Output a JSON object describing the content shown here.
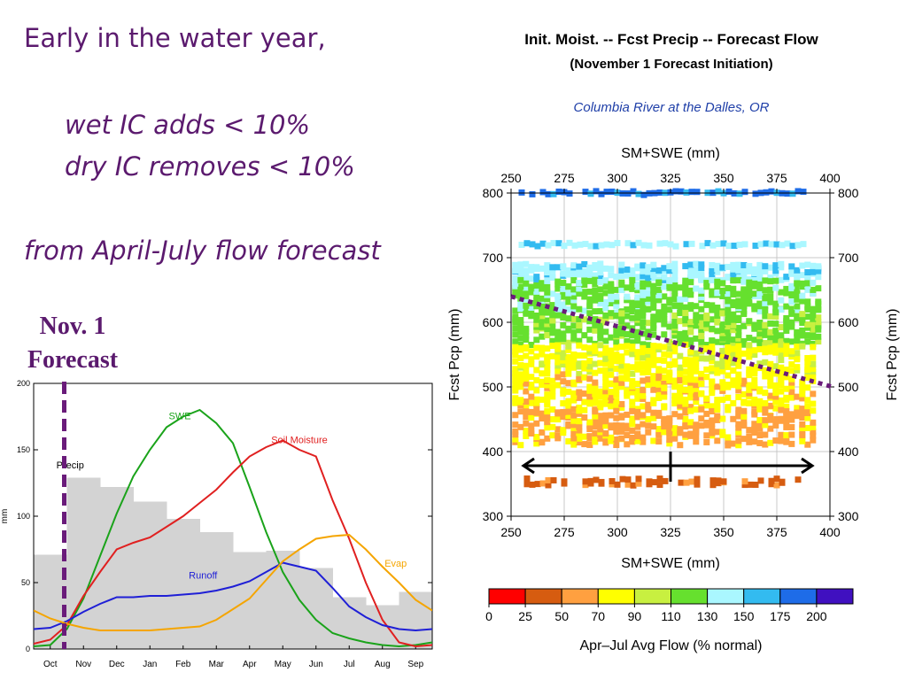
{
  "slide": {
    "line1": "Early in the water year,",
    "line2": "wet IC adds < 10%",
    "line3": "dry IC removes < 10%",
    "line4": "from April-July flow forecast",
    "nov_label_1": "Nov. 1",
    "nov_label_2": "Forecast"
  },
  "colors": {
    "slide_text": "#5b1a6e",
    "dashed_marker": "#6a1b7a",
    "subtitle_blue": "#1f3fa8"
  },
  "chart_data": [
    {
      "type": "line",
      "title": "",
      "xlabel": "",
      "ylabel": "mm",
      "ylim": [
        0,
        200
      ],
      "yticks": [
        0,
        50,
        100,
        150,
        200
      ],
      "categories": [
        "Oct",
        "Nov",
        "Dec",
        "Jan",
        "Feb",
        "Mar",
        "Apr",
        "May",
        "Jun",
        "Jul",
        "Aug",
        "Sep"
      ],
      "bars": {
        "name": "Precip",
        "color": "#d3d3d3",
        "values": [
          71,
          129,
          122,
          111,
          98,
          88,
          73,
          74,
          61,
          39,
          33,
          43
        ]
      },
      "series": [
        {
          "name": "SWE",
          "color": "#1aa31a",
          "label_anchor": [
            3.9,
            173
          ],
          "x": [
            -0.5,
            0,
            0.5,
            1,
            1.5,
            2,
            2.5,
            3,
            3.5,
            4,
            4.5,
            5,
            5.5,
            6,
            6.5,
            7,
            7.5,
            8,
            8.5,
            9,
            9.5,
            10,
            10.5,
            11,
            11.5
          ],
          "y": [
            2,
            3,
            15,
            38,
            70,
            102,
            130,
            150,
            167,
            175,
            180,
            170,
            155,
            122,
            88,
            58,
            37,
            22,
            12,
            8,
            5,
            3,
            2,
            3,
            5
          ]
        },
        {
          "name": "Soil Moisture",
          "color": "#e02020",
          "label_anchor": [
            7.5,
            155
          ],
          "x": [
            -0.5,
            0,
            0.5,
            1,
            1.5,
            2,
            2.5,
            3,
            3.5,
            4,
            4.5,
            5,
            5.5,
            6,
            6.5,
            7,
            7.5,
            8,
            8.5,
            9,
            9.5,
            10,
            10.5,
            11,
            11.5
          ],
          "y": [
            4,
            7,
            18,
            40,
            58,
            75,
            80,
            84,
            92,
            100,
            110,
            120,
            133,
            145,
            152,
            157,
            150,
            145,
            112,
            83,
            50,
            22,
            5,
            2,
            3
          ]
        },
        {
          "name": "Runoff",
          "color": "#1f1fd6",
          "label_anchor": [
            4.6,
            53
          ],
          "x": [
            -0.5,
            0,
            0.5,
            1,
            1.5,
            2,
            2.5,
            3,
            3.5,
            4,
            4.5,
            5,
            5.5,
            6,
            6.5,
            7,
            7.5,
            8,
            8.5,
            9,
            9.5,
            10,
            10.5,
            11,
            11.5
          ],
          "y": [
            15,
            16,
            21,
            28,
            34,
            39,
            39,
            40,
            40,
            41,
            42,
            44,
            47,
            51,
            58,
            65,
            62,
            59,
            46,
            32,
            24,
            18,
            15,
            14,
            15
          ]
        },
        {
          "name": "Evap",
          "color": "#f5a500",
          "label_anchor": [
            10.4,
            62
          ],
          "x": [
            -0.5,
            0,
            0.5,
            1,
            1.5,
            2,
            2.5,
            3,
            3.5,
            4,
            4.5,
            5,
            5.5,
            6,
            6.5,
            7,
            7.5,
            8,
            8.5,
            9,
            9.5,
            10,
            10.5,
            11,
            11.5
          ],
          "y": [
            29,
            23,
            19,
            16,
            14,
            14,
            14,
            14,
            15,
            16,
            17,
            22,
            30,
            38,
            52,
            66,
            75,
            83,
            85,
            86,
            75,
            62,
            50,
            37,
            29
          ]
        }
      ],
      "annotation": {
        "text": "Precip",
        "at": [
          0.6,
          136
        ]
      },
      "marker_x": "Nov. 1"
    },
    {
      "type": "scatter",
      "title": "Init. Moist. -- Fcst Precip -- Forecast Flow",
      "subtitle": "(November 1 Forecast Initiation)",
      "subtitle2": "Columbia River at the Dalles, OR",
      "xlabel": "SM+SWE (mm)",
      "ylabel": "Fcst Pcp (mm)",
      "xlim": [
        250,
        400
      ],
      "ylim": [
        300,
        800
      ],
      "xticks": [
        250,
        275,
        300,
        325,
        350,
        375,
        400
      ],
      "yticks": [
        300,
        400,
        500,
        600,
        700,
        800
      ],
      "colorbar": {
        "label": "Apr–Jul Avg Flow (% normal)",
        "boundaries": [
          "0",
          "25",
          "50",
          "70",
          "90",
          "110",
          "130",
          "150",
          "175",
          "200"
        ],
        "colors": [
          "#ff0000",
          "#d65c10",
          "#ffa040",
          "#ffff00",
          "#c8f040",
          "#66e02e",
          "#aaf7ff",
          "#33bbf0",
          "#1e6ce8",
          "#4010c0"
        ]
      },
      "bands": [
        {
          "pcp": [
            798,
            802
          ],
          "x": [
            255,
            388
          ],
          "density": 0.85,
          "color_index": 8,
          "edge_color_index": 7
        },
        {
          "pcp": [
            718,
            722
          ],
          "x": [
            255,
            388
          ],
          "density": 0.9,
          "color_index": 6,
          "edge_color_index": 7
        },
        {
          "pcp": [
            665,
            690
          ],
          "x": [
            252,
            396
          ],
          "density": 0.7,
          "color_index": 6,
          "edge_color_index": 7
        },
        {
          "pcp": [
            615,
            665
          ],
          "x": [
            252,
            396
          ],
          "density": 0.6,
          "color_index": 5,
          "edge_color_index": 6
        },
        {
          "pcp": [
            565,
            615
          ],
          "x": [
            252,
            396
          ],
          "density": 0.55,
          "color_index": 5,
          "edge_color_index": 4
        },
        {
          "pcp": [
            520,
            565
          ],
          "x": [
            252,
            392
          ],
          "density": 0.55,
          "color_index": 3,
          "edge_color_index": 4
        },
        {
          "pcp": [
            465,
            520
          ],
          "x": [
            252,
            392
          ],
          "density": 0.5,
          "color_index": 3,
          "edge_color_index": 2
        },
        {
          "pcp": [
            410,
            465
          ],
          "x": [
            252,
            392
          ],
          "density": 0.45,
          "color_index": 2,
          "edge_color_index": 3
        },
        {
          "pcp": [
            348,
            358
          ],
          "x": [
            255,
            385
          ],
          "density": 0.55,
          "color_index": 1,
          "edge_color_index": 2
        }
      ],
      "dotted_line": {
        "from": [
          250,
          640
        ],
        "to": [
          400,
          500
        ],
        "color": "#6a1b7a"
      },
      "arrow": {
        "y": 378,
        "x_from": 250,
        "x_to": 390,
        "tick_x": 325
      }
    }
  ]
}
